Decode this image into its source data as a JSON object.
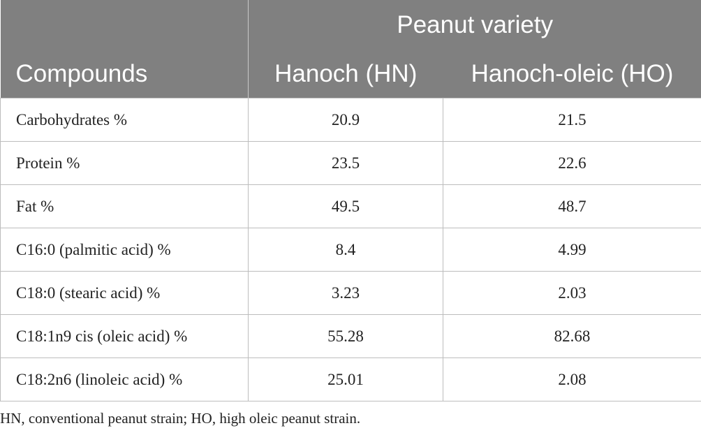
{
  "table": {
    "group_header": "Peanut variety",
    "columns": [
      "Compounds",
      "Hanoch (HN)",
      "Hanoch-oleic (HO)"
    ],
    "rows": [
      [
        "Carbohydrates %",
        "20.9",
        "21.5"
      ],
      [
        "Protein %",
        "23.5",
        "22.6"
      ],
      [
        "Fat %",
        "49.5",
        "48.7"
      ],
      [
        "C16:0 (palmitic acid) %",
        "8.4",
        "4.99"
      ],
      [
        "C18:0 (stearic acid) %",
        "3.23",
        "2.03"
      ],
      [
        "C18:1n9 cis (oleic acid) %",
        "55.28",
        "82.68"
      ],
      [
        "C18:2n6 (linoleic acid) %",
        "25.01",
        "2.08"
      ]
    ],
    "footnote": "HN, conventional peanut strain; HO, high oleic peanut strain."
  }
}
